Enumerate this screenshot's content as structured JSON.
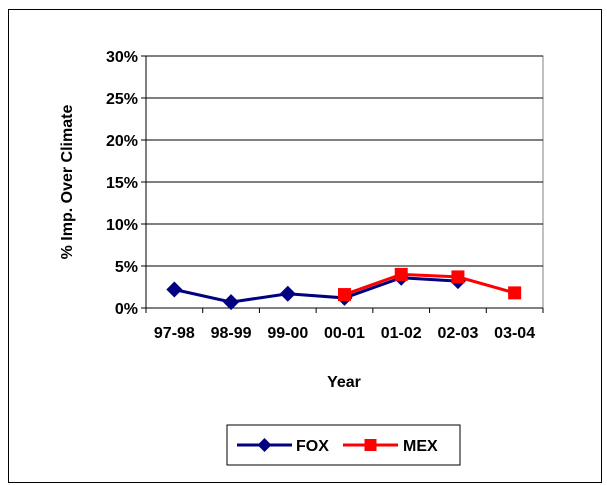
{
  "chart_data": {
    "type": "line",
    "categories": [
      "97-98",
      "98-99",
      "99-00",
      "00-01",
      "01-02",
      "02-03",
      "03-04"
    ],
    "series": [
      {
        "name": "FOX",
        "color": "#000080",
        "marker": "diamond",
        "values": [
          2.2,
          0.7,
          1.7,
          1.2,
          3.6,
          3.2,
          null
        ]
      },
      {
        "name": "MEX",
        "color": "#ff0000",
        "marker": "square",
        "values": [
          null,
          null,
          null,
          1.6,
          4.0,
          3.7,
          1.8
        ]
      }
    ],
    "title": "",
    "xlabel": "Year",
    "ylabel": "% Imp. Over Climate",
    "ylim": [
      0,
      30
    ],
    "yticks": [
      0,
      5,
      10,
      15,
      20,
      25,
      30
    ],
    "ytick_labels": [
      "0%",
      "5%",
      "10%",
      "15%",
      "20%",
      "25%",
      "30%"
    ],
    "grid": true,
    "legend_position": "bottom"
  }
}
